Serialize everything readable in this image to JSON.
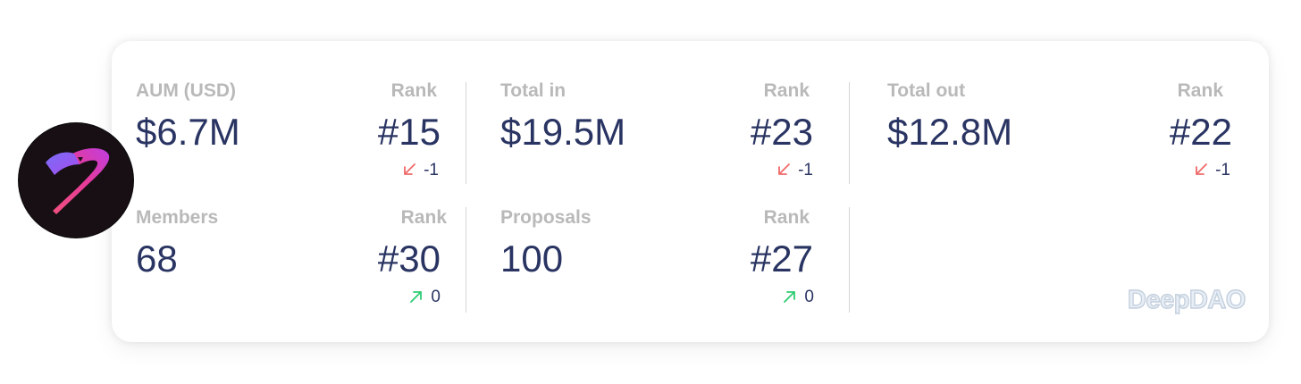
{
  "colors": {
    "label": "#b9b9b9",
    "value": "#293462",
    "down": "#f06a6a",
    "up": "#2ecc71"
  },
  "metrics": [
    {
      "label": "AUM (USD)",
      "value": "$6.7M",
      "rank_label": "Rank",
      "rank": "#15",
      "change": "-1",
      "direction": "down"
    },
    {
      "label": "Total in",
      "value": "$19.5M",
      "rank_label": "Rank",
      "rank": "#23",
      "change": "-1",
      "direction": "down"
    },
    {
      "label": "Total out",
      "value": "$12.8M",
      "rank_label": "Rank",
      "rank": "#22",
      "change": "-1",
      "direction": "down"
    },
    {
      "label": "Members",
      "value": "68",
      "rank_label": "Rank",
      "rank": "#30",
      "change": "0",
      "direction": "up"
    },
    {
      "label": "Proposals",
      "value": "100",
      "rank_label": "Rank",
      "rank": "#27",
      "change": "0",
      "direction": "up"
    }
  ],
  "watermark": "DeepDAO",
  "logo": {
    "icon": "flamingo-logo-icon"
  }
}
